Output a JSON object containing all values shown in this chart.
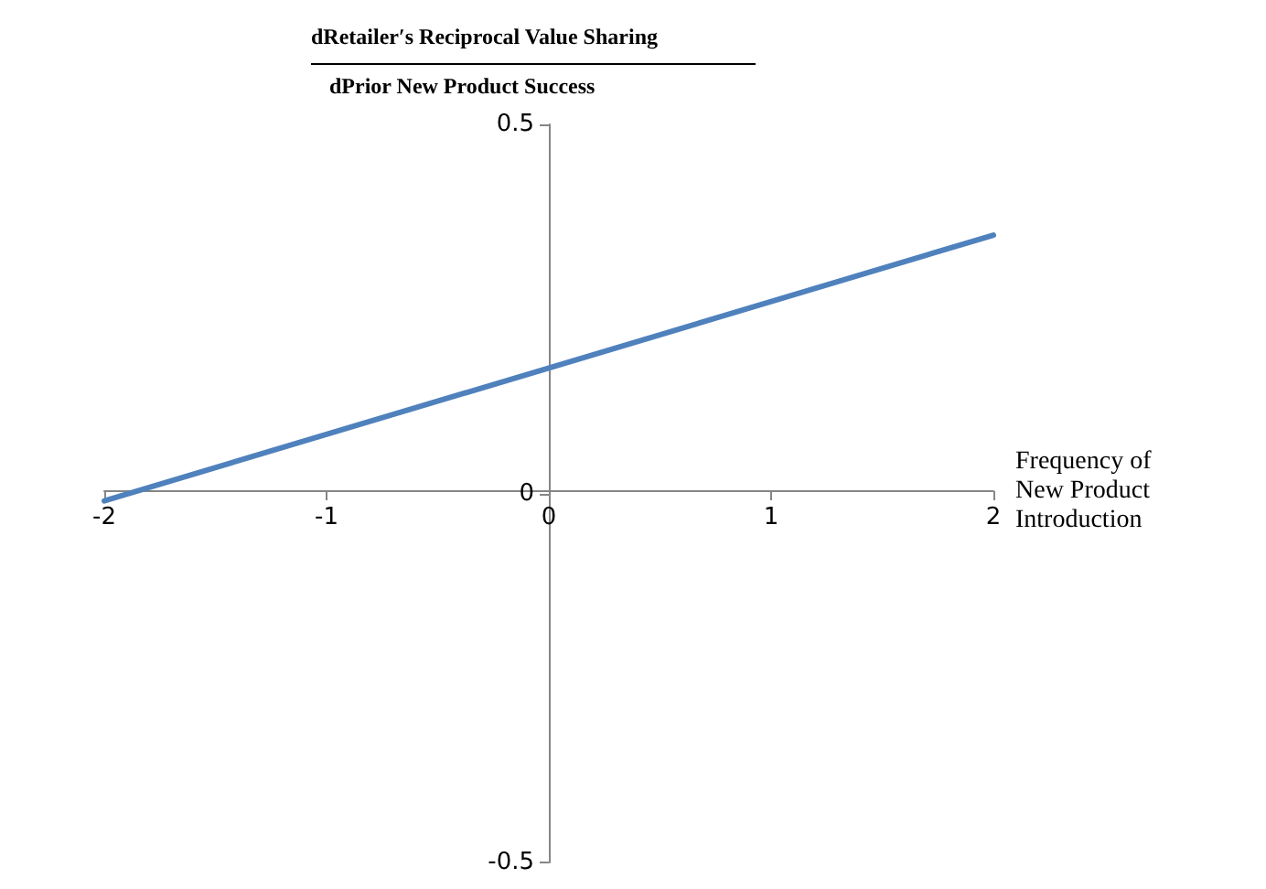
{
  "chart_data": {
    "type": "line",
    "xlabel": "Frequency of\nNew Product\nIntroduction",
    "ylabel": "dRetailer′s Reciprocal Value Sharing\ndPrior New Product Success",
    "x": [
      -2,
      2
    ],
    "series": [
      {
        "color": "#4f81bd",
        "values": [
          -0.01,
          0.35
        ]
      }
    ],
    "xlim": [
      -2,
      2
    ],
    "xticks": [
      -2,
      -1,
      0,
      1,
      2
    ],
    "ylim": [
      -0.5,
      0.5
    ],
    "yticks": [
      -0.5,
      0,
      0.5
    ],
    "grid": false,
    "marker": "none",
    "line_style": "solid"
  }
}
